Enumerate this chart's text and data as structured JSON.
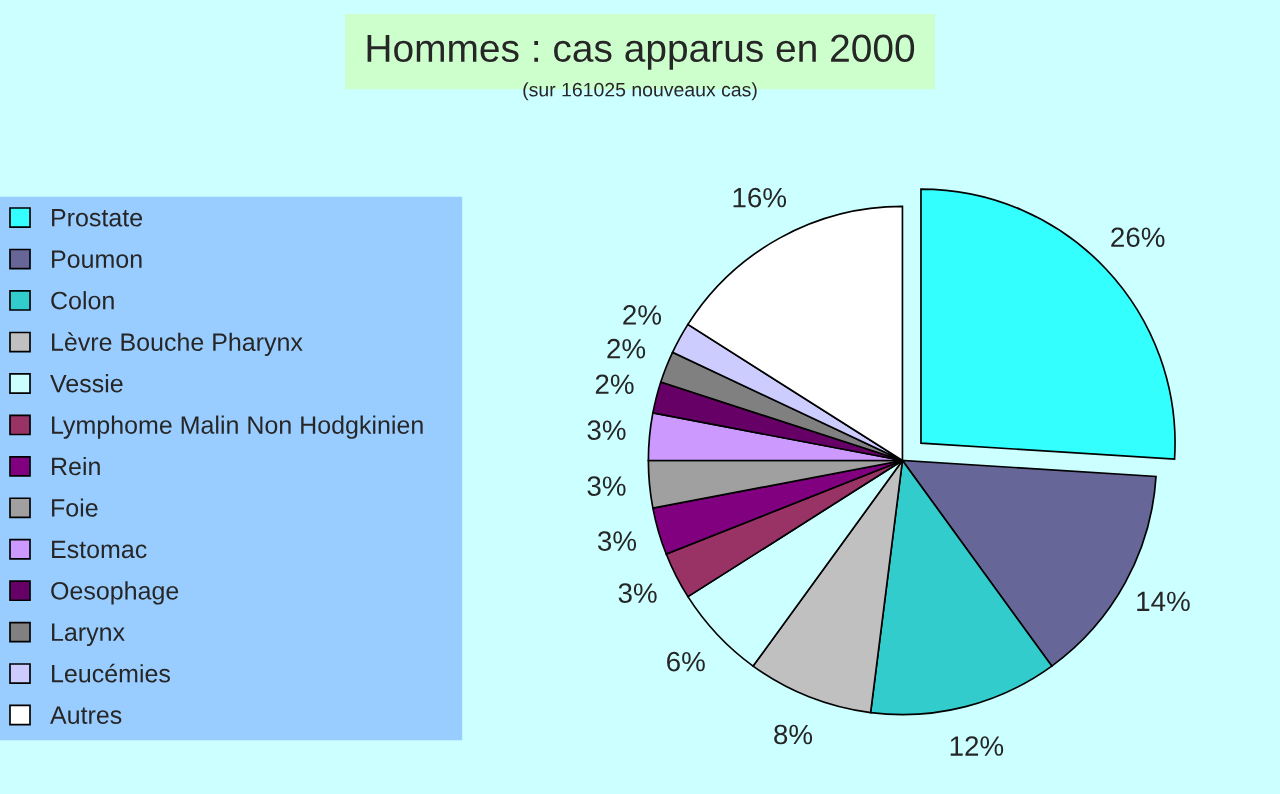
{
  "chart_data": {
    "type": "pie",
    "title": "Hommes : cas apparus en 2000",
    "subtitle": "(sur 161025 nouveaux cas)",
    "categories": [
      "Prostate",
      "Poumon",
      "Colon",
      "Lèvre Bouche Pharynx",
      "Vessie",
      "Lymphome Malin Non Hodgkinien",
      "Rein",
      "Foie",
      "Estomac",
      "Oesophage",
      "Larynx",
      "Leucémies",
      "Autres"
    ],
    "values": [
      26,
      14,
      12,
      8,
      6,
      3,
      3,
      3,
      3,
      2,
      2,
      2,
      16
    ],
    "value_labels": [
      "26%",
      "14%",
      "12%",
      "8%",
      "6%",
      "3%",
      "3%",
      "3%",
      "3%",
      "2%",
      "2%",
      "2%",
      "16%"
    ],
    "colors": [
      "#33ffff",
      "#666699",
      "#33cccc",
      "#c0c0c0",
      "#ccffff",
      "#993366",
      "#800080",
      "#a0a0a0",
      "#cc99ff",
      "#660066",
      "#808080",
      "#ccccff",
      "#ffffff"
    ],
    "legend": "left"
  }
}
